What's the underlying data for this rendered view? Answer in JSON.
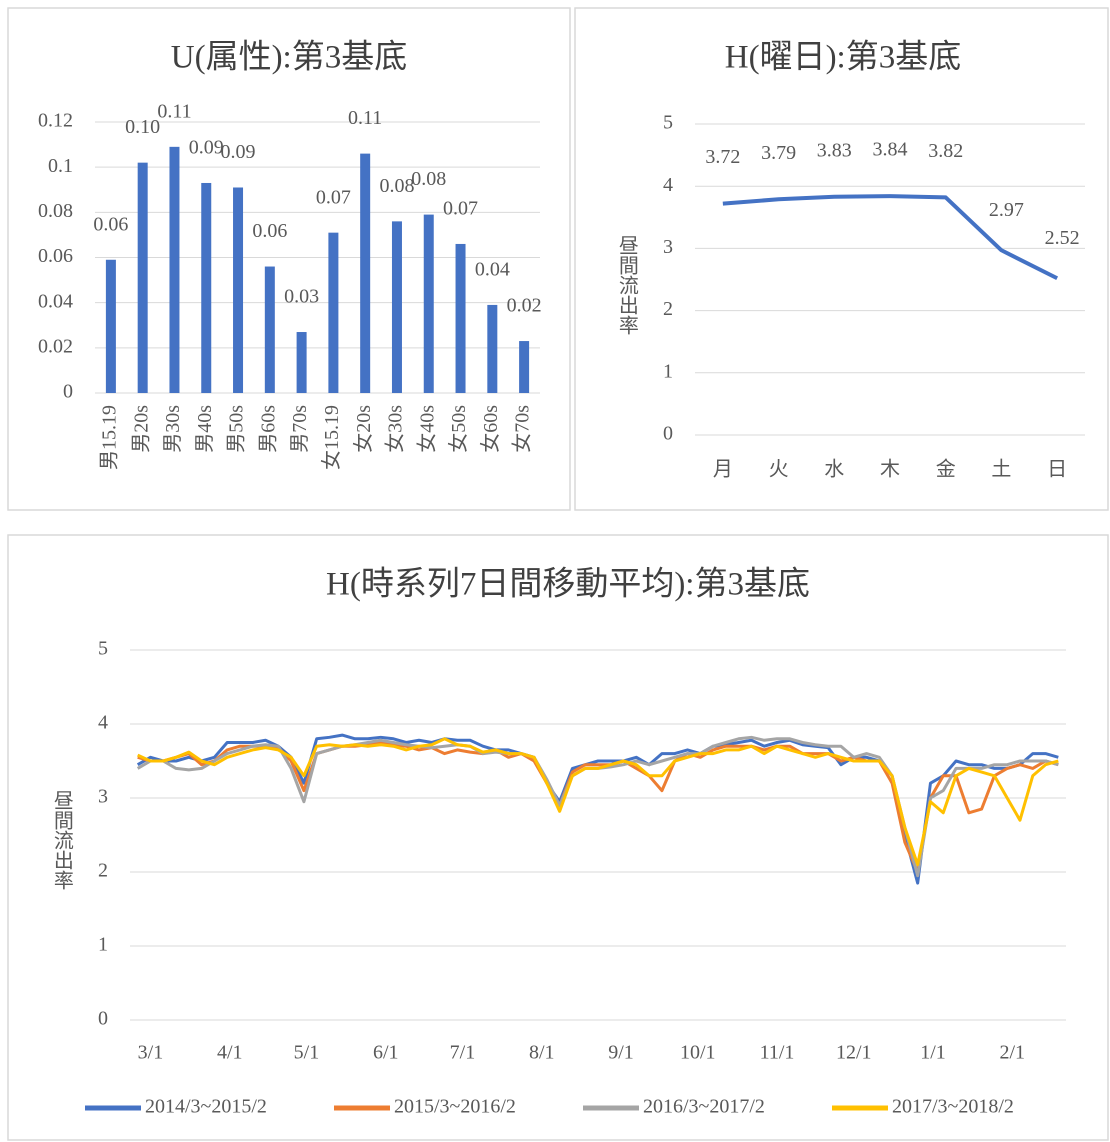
{
  "chart_data": [
    {
      "type": "bar",
      "title": "U(属性):第3基底",
      "categories": [
        "男15.19",
        "男20s",
        "男30s",
        "男40s",
        "男50s",
        "男60s",
        "男70s",
        "女15.19",
        "女20s",
        "女30s",
        "女40s",
        "女50s",
        "女60s",
        "女70s"
      ],
      "values": [
        0.059,
        0.102,
        0.109,
        0.093,
        0.091,
        0.056,
        0.027,
        0.071,
        0.106,
        0.076,
        0.079,
        0.066,
        0.039,
        0.023
      ],
      "value_labels": [
        "0.06",
        "0.10",
        "0.11",
        "0.09",
        "0.09",
        "0.06",
        "0.03",
        "0.07",
        "0.11",
        "0.08",
        "0.08",
        "0.07",
        "0.04",
        "0.02"
      ],
      "color": "#4472c4",
      "ylim": [
        0,
        0.12
      ],
      "yticks": [
        0,
        0.02,
        0.04,
        0.06,
        0.08,
        0.1,
        0.12
      ],
      "grid": true
    },
    {
      "type": "line",
      "title": "H(曜日):第3基底",
      "y_label": "昼間流出率",
      "categories": [
        "月",
        "火",
        "水",
        "木",
        "金",
        "土",
        "日"
      ],
      "values": [
        3.72,
        3.79,
        3.83,
        3.84,
        3.82,
        2.97,
        2.52
      ],
      "color": "#4472c4",
      "ylim": [
        0,
        5
      ],
      "yticks": [
        0,
        1,
        2,
        3,
        4,
        5
      ],
      "grid": true,
      "data_labels": true
    },
    {
      "type": "line",
      "title": "H(時系列7日間移動平均):第3基底",
      "y_label": "昼間流出率",
      "x": [
        -5,
        0,
        5,
        10,
        15,
        20,
        25,
        30,
        35,
        40,
        45,
        50,
        55,
        60,
        65,
        70,
        75,
        80,
        85,
        90,
        95,
        100,
        105,
        110,
        115,
        120,
        125,
        130,
        135,
        140,
        145,
        150,
        155,
        160,
        165,
        170,
        175,
        180,
        185,
        190,
        195,
        200,
        205,
        210,
        215,
        220,
        225,
        230,
        235,
        240,
        245,
        250,
        255,
        260,
        265,
        270,
        275,
        280,
        285,
        290,
        295,
        300,
        305,
        310,
        315,
        320,
        325,
        330,
        335,
        340,
        345,
        350,
        355
      ],
      "xlim": [
        -8,
        358
      ],
      "xticks": [
        {
          "value": 0,
          "label": "3/1"
        },
        {
          "value": 31,
          "label": "4/1"
        },
        {
          "value": 61,
          "label": "5/1"
        },
        {
          "value": 92,
          "label": "6/1"
        },
        {
          "value": 122,
          "label": "7/1"
        },
        {
          "value": 153,
          "label": "8/1"
        },
        {
          "value": 184,
          "label": "9/1"
        },
        {
          "value": 214,
          "label": "10/1"
        },
        {
          "value": 245,
          "label": "11/1"
        },
        {
          "value": 275,
          "label": "12/1"
        },
        {
          "value": 306,
          "label": "1/1"
        },
        {
          "value": 337,
          "label": "2/1"
        }
      ],
      "ylim": [
        0,
        5
      ],
      "yticks": [
        0,
        1,
        2,
        3,
        4,
        5
      ],
      "grid": true,
      "legend": "bottom",
      "series": [
        {
          "name": "2014/3~2015/2",
          "color": "#4472c4",
          "values": [
            3.45,
            3.55,
            3.5,
            3.5,
            3.55,
            3.5,
            3.55,
            3.75,
            3.75,
            3.75,
            3.78,
            3.7,
            3.55,
            3.2,
            3.8,
            3.82,
            3.85,
            3.8,
            3.8,
            3.82,
            3.8,
            3.75,
            3.78,
            3.75,
            3.8,
            3.78,
            3.78,
            3.7,
            3.65,
            3.65,
            3.6,
            3.55,
            3.2,
            2.95,
            3.4,
            3.45,
            3.5,
            3.5,
            3.5,
            3.55,
            3.45,
            3.6,
            3.6,
            3.65,
            3.6,
            3.7,
            3.72,
            3.75,
            3.78,
            3.7,
            3.75,
            3.78,
            3.72,
            3.7,
            3.68,
            3.45,
            3.55,
            3.55,
            3.5,
            3.3,
            2.5,
            1.85,
            3.2,
            3.3,
            3.5,
            3.45,
            3.45,
            3.4,
            3.4,
            3.45,
            3.6,
            3.6,
            3.55
          ]
        },
        {
          "name": "2015/3~2016/2",
          "color": "#ed7d31",
          "values": [
            3.55,
            3.5,
            3.5,
            3.55,
            3.6,
            3.45,
            3.5,
            3.65,
            3.7,
            3.7,
            3.7,
            3.68,
            3.5,
            3.1,
            3.6,
            3.65,
            3.7,
            3.7,
            3.72,
            3.75,
            3.72,
            3.7,
            3.65,
            3.68,
            3.6,
            3.65,
            3.62,
            3.6,
            3.65,
            3.55,
            3.6,
            3.5,
            3.2,
            2.9,
            3.35,
            3.45,
            3.45,
            3.45,
            3.5,
            3.4,
            3.3,
            3.1,
            3.5,
            3.6,
            3.55,
            3.65,
            3.7,
            3.7,
            3.7,
            3.65,
            3.7,
            3.7,
            3.6,
            3.6,
            3.6,
            3.5,
            3.55,
            3.5,
            3.5,
            3.2,
            2.4,
            2.0,
            3.0,
            3.3,
            3.3,
            2.8,
            2.85,
            3.3,
            3.4,
            3.45,
            3.4,
            3.5,
            3.45
          ]
        },
        {
          "name": "2016/3~2017/2",
          "color": "#a5a5a5",
          "values": [
            3.4,
            3.5,
            3.5,
            3.4,
            3.38,
            3.4,
            3.5,
            3.6,
            3.65,
            3.7,
            3.72,
            3.7,
            3.4,
            2.95,
            3.6,
            3.65,
            3.7,
            3.72,
            3.75,
            3.78,
            3.75,
            3.72,
            3.7,
            3.68,
            3.7,
            3.72,
            3.7,
            3.6,
            3.62,
            3.6,
            3.6,
            3.55,
            3.25,
            2.9,
            3.3,
            3.4,
            3.4,
            3.42,
            3.45,
            3.5,
            3.45,
            3.5,
            3.55,
            3.6,
            3.6,
            3.7,
            3.75,
            3.8,
            3.82,
            3.78,
            3.8,
            3.8,
            3.75,
            3.72,
            3.7,
            3.7,
            3.55,
            3.6,
            3.55,
            3.3,
            2.6,
            1.95,
            3.0,
            3.1,
            3.4,
            3.4,
            3.4,
            3.45,
            3.45,
            3.5,
            3.5,
            3.5,
            3.45
          ]
        },
        {
          "name": "2017/3~2018/2",
          "color": "#ffc000",
          "values": [
            3.58,
            3.5,
            3.5,
            3.55,
            3.62,
            3.5,
            3.45,
            3.55,
            3.6,
            3.65,
            3.68,
            3.65,
            3.55,
            3.3,
            3.7,
            3.72,
            3.7,
            3.72,
            3.7,
            3.72,
            3.7,
            3.65,
            3.7,
            3.72,
            3.8,
            3.72,
            3.7,
            3.62,
            3.65,
            3.6,
            3.6,
            3.55,
            3.2,
            2.82,
            3.3,
            3.4,
            3.4,
            3.45,
            3.5,
            3.45,
            3.3,
            3.3,
            3.5,
            3.55,
            3.6,
            3.6,
            3.65,
            3.65,
            3.7,
            3.6,
            3.7,
            3.65,
            3.6,
            3.55,
            3.6,
            3.55,
            3.5,
            3.5,
            3.5,
            3.3,
            2.6,
            2.1,
            2.95,
            2.8,
            3.3,
            3.4,
            3.35,
            3.3,
            3.0,
            2.7,
            3.3,
            3.45,
            3.5
          ]
        }
      ]
    }
  ]
}
